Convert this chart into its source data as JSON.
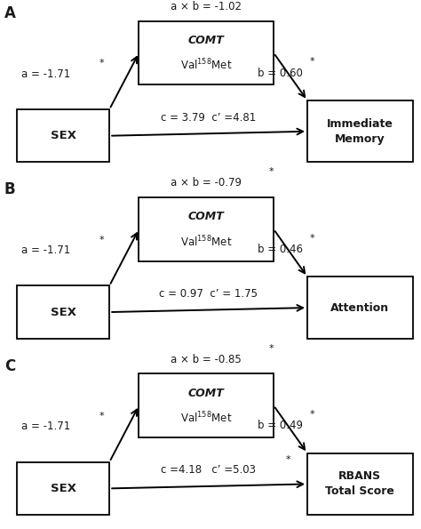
{
  "panels": [
    {
      "label": "A",
      "ab_text": "a × b = -1.02",
      "ab_star": true,
      "a_text": "a = -1.71",
      "a_star": true,
      "b_text": "b = 0.60",
      "b_star": true,
      "c_text": "c = 3.79  c’ =4.81",
      "c_star": false,
      "outcome": "Immediate\nMemory"
    },
    {
      "label": "B",
      "ab_text": "a × b = -0.79",
      "ab_star": true,
      "a_text": "a = -1.71",
      "a_star": true,
      "b_text": "b = 0.46",
      "b_star": true,
      "c_text": "c = 0.97  c’ = 1.75",
      "c_star": false,
      "outcome": "Attention"
    },
    {
      "label": "C",
      "ab_text": "a × b = -0.85",
      "ab_star": true,
      "a_text": "a = -1.71",
      "a_star": true,
      "b_text": "b = 0.49",
      "b_star": true,
      "c_text": "c =4.18   c’ =5.03",
      "c_star": true,
      "outcome": "RBANS\nTotal Score"
    }
  ],
  "sex_label": "SEX",
  "comt_italic": "COMT",
  "comt_normal": "Val$^{158}$Met",
  "bg_color": "#ffffff",
  "text_color": "#1a1a1a",
  "box_color": "#000000",
  "arrow_color": "#000000"
}
